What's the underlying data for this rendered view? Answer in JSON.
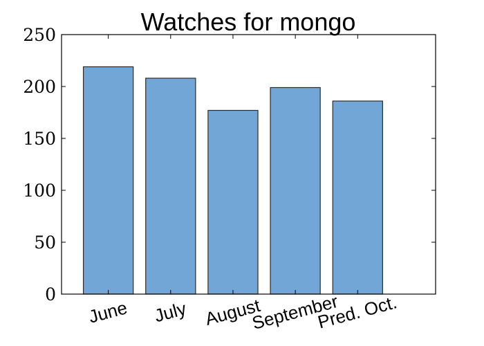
{
  "chart_data": {
    "type": "bar",
    "title": "Watches for mongo",
    "xlabel": "",
    "ylabel": "",
    "categories": [
      "June",
      "July",
      "August",
      "September",
      "Pred. Oct."
    ],
    "values": [
      219,
      208,
      177,
      199,
      186
    ],
    "ylim": [
      0,
      250
    ],
    "yticks": [
      0,
      50,
      100,
      150,
      200,
      250
    ],
    "ytick_labels": [
      "0",
      "50",
      "100",
      "150",
      "200",
      "250"
    ],
    "xlim": [
      -0.75,
      5.25
    ],
    "bar_width": 0.8,
    "bar_color": "#72a6d6",
    "edge_color": "#2b2b2b",
    "grid": false,
    "legend": "none"
  }
}
